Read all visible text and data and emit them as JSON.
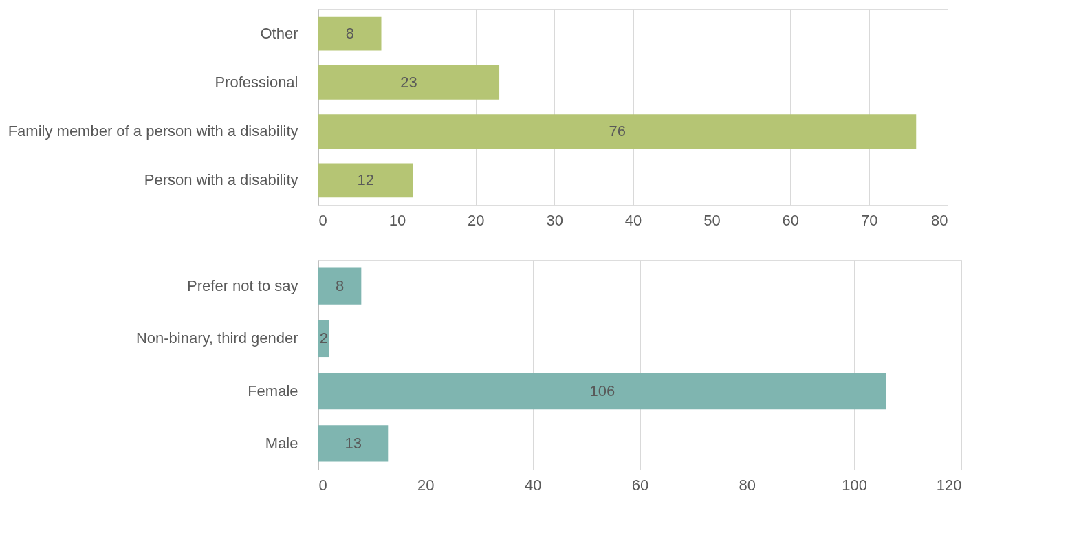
{
  "chart_data": [
    {
      "type": "bar",
      "orientation": "horizontal",
      "categories": [
        "Other",
        "Professional",
        "Family member of a person with a disability",
        "Person with a disability"
      ],
      "values": [
        8,
        23,
        76,
        12
      ],
      "color": "#b5c574",
      "xlim": [
        0,
        80
      ],
      "xticks": [
        0,
        10,
        20,
        30,
        40,
        50,
        60,
        70,
        80
      ],
      "grid": "x",
      "data_labels": true
    },
    {
      "type": "bar",
      "orientation": "horizontal",
      "categories": [
        "Prefer not to say",
        "Non-binary, third gender",
        "Female",
        "Male"
      ],
      "values": [
        8,
        2,
        106,
        13
      ],
      "color": "#7fb5b0",
      "xlim": [
        0,
        120
      ],
      "xticks": [
        0,
        20,
        40,
        60,
        80,
        100,
        120
      ],
      "grid": "x",
      "data_labels": true
    }
  ]
}
